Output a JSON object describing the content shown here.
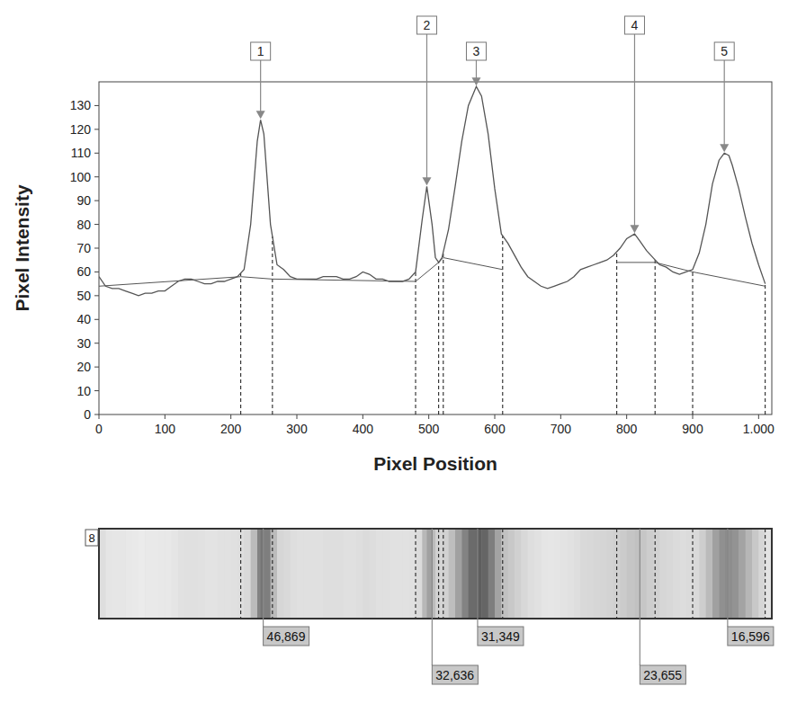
{
  "chart_data": {
    "type": "line",
    "x_label": "Pixel Position",
    "y_label": "Pixel Intensity",
    "xlim": [
      0,
      1020
    ],
    "ylim": [
      0,
      140
    ],
    "xticks": [
      0,
      100,
      200,
      300,
      400,
      500,
      600,
      700,
      800,
      900,
      {
        "value": 1000,
        "label": "1.000"
      }
    ],
    "yticks": [
      0,
      10,
      20,
      30,
      40,
      50,
      60,
      70,
      80,
      90,
      100,
      110,
      120,
      130
    ],
    "grid": false,
    "series": [
      {
        "color": "#555555",
        "x": [
          0,
          10,
          20,
          30,
          40,
          50,
          60,
          70,
          80,
          90,
          100,
          110,
          120,
          130,
          140,
          150,
          160,
          170,
          180,
          190,
          200,
          210,
          220,
          230,
          240,
          245,
          250,
          260,
          270,
          280,
          290,
          300,
          310,
          320,
          330,
          340,
          350,
          360,
          370,
          380,
          390,
          400,
          410,
          420,
          430,
          440,
          450,
          460,
          470,
          480,
          490,
          497,
          505,
          510,
          515,
          520,
          530,
          540,
          550,
          560,
          572,
          580,
          590,
          600,
          610,
          620,
          630,
          640,
          650,
          660,
          670,
          680,
          690,
          700,
          710,
          720,
          730,
          740,
          750,
          760,
          770,
          780,
          790,
          800,
          812,
          820,
          830,
          840,
          850,
          860,
          870,
          880,
          890,
          900,
          910,
          920,
          930,
          940,
          948,
          955,
          960,
          970,
          980,
          990,
          1000,
          1010
        ],
        "values": [
          58,
          54,
          53,
          53,
          52,
          51,
          50,
          51,
          51,
          52,
          52,
          54,
          56,
          57,
          57,
          56,
          55,
          55,
          56,
          56,
          57,
          58,
          61,
          80,
          115,
          124,
          118,
          80,
          63,
          61,
          58,
          57,
          57,
          57,
          57,
          58,
          58,
          58,
          57,
          57,
          58,
          60,
          59,
          57,
          57,
          56,
          56,
          56,
          57,
          60,
          82,
          96,
          80,
          66,
          64,
          66,
          78,
          96,
          115,
          130,
          138,
          134,
          118,
          95,
          76,
          72,
          67,
          62,
          58,
          56,
          54,
          53,
          54,
          55,
          56,
          58,
          61,
          62,
          63,
          64,
          65,
          67,
          70,
          74,
          76,
          73,
          69,
          66,
          63,
          62,
          60,
          59,
          60,
          61,
          68,
          80,
          97,
          107,
          110,
          109,
          105,
          95,
          83,
          72,
          63,
          55
        ]
      },
      {
        "color": "#555555",
        "x": [
          0,
          215,
          263,
          480,
          515,
          522,
          612,
          700,
          785,
          843,
          900,
          1010
        ],
        "values": [
          54,
          58,
          57,
          56,
          64,
          66,
          61,
          null,
          64,
          64,
          60,
          54
        ]
      }
    ],
    "annotations": [
      {
        "label": "1",
        "x": 245,
        "y": 124
      },
      {
        "label": "2",
        "x": 497,
        "y": 96
      },
      {
        "label": "3",
        "x": 572,
        "y": 138
      },
      {
        "label": "4",
        "x": 812,
        "y": 76
      },
      {
        "label": "5",
        "x": 948,
        "y": 110
      }
    ],
    "boundaries": [
      215,
      263,
      480,
      515,
      522,
      612,
      785,
      843,
      900,
      1010
    ],
    "lane": "8",
    "bands": {
      "x": [
        249,
        505,
        574,
        820,
        953
      ],
      "values": [
        46869,
        32636,
        31349,
        23655,
        16596
      ],
      "value_labels": [
        "46,869",
        "32,636",
        "31,349",
        "23,655",
        "16,596"
      ]
    }
  }
}
